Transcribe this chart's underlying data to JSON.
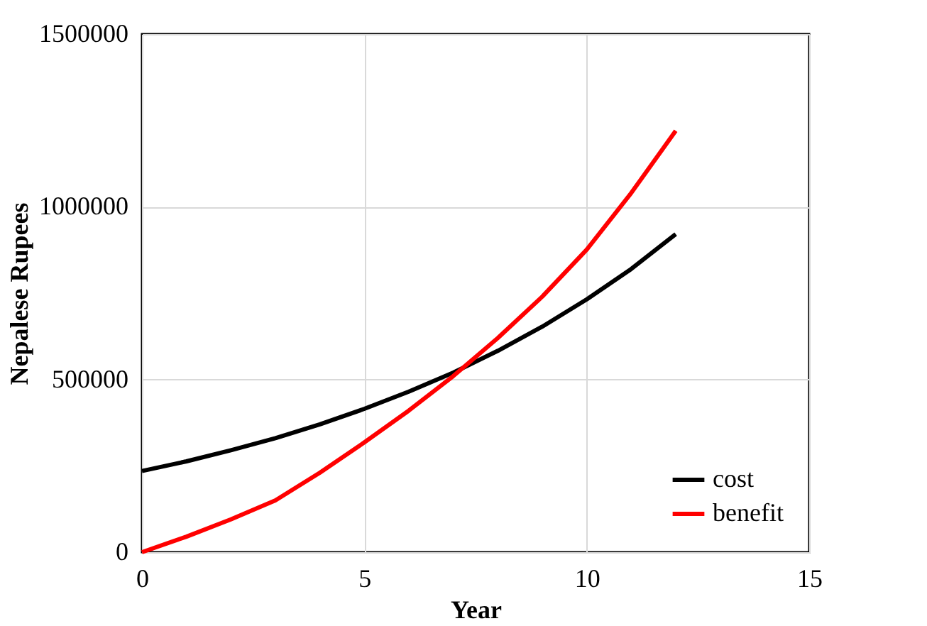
{
  "chart_data": {
    "type": "line",
    "xlabel": "Year",
    "ylabel": "Nepalese Rupees",
    "x": [
      0,
      1,
      2,
      3,
      4,
      5,
      6,
      7,
      8,
      9,
      10,
      11,
      12
    ],
    "series": [
      {
        "name": "cost",
        "color": "#000000",
        "values": [
          235000,
          263000,
          295000,
          330000,
          370000,
          415000,
          465000,
          520000,
          583000,
          653000,
          732000,
          820000,
          921000
        ]
      },
      {
        "name": "benefit",
        "color": "#ff0000",
        "values": [
          0,
          45000,
          95000,
          150000,
          230000,
          318000,
          410000,
          510000,
          620000,
          740000,
          876000,
          1040000,
          1220000
        ]
      }
    ],
    "xlim": [
      0,
      15
    ],
    "xticks": [
      0,
      5,
      10,
      15
    ],
    "ylim": [
      0,
      1500000
    ],
    "yticks": [
      0,
      500000,
      1000000,
      1500000
    ],
    "grid": true,
    "legend": "bottom right",
    "marker": "none",
    "line_style": "solid"
  }
}
